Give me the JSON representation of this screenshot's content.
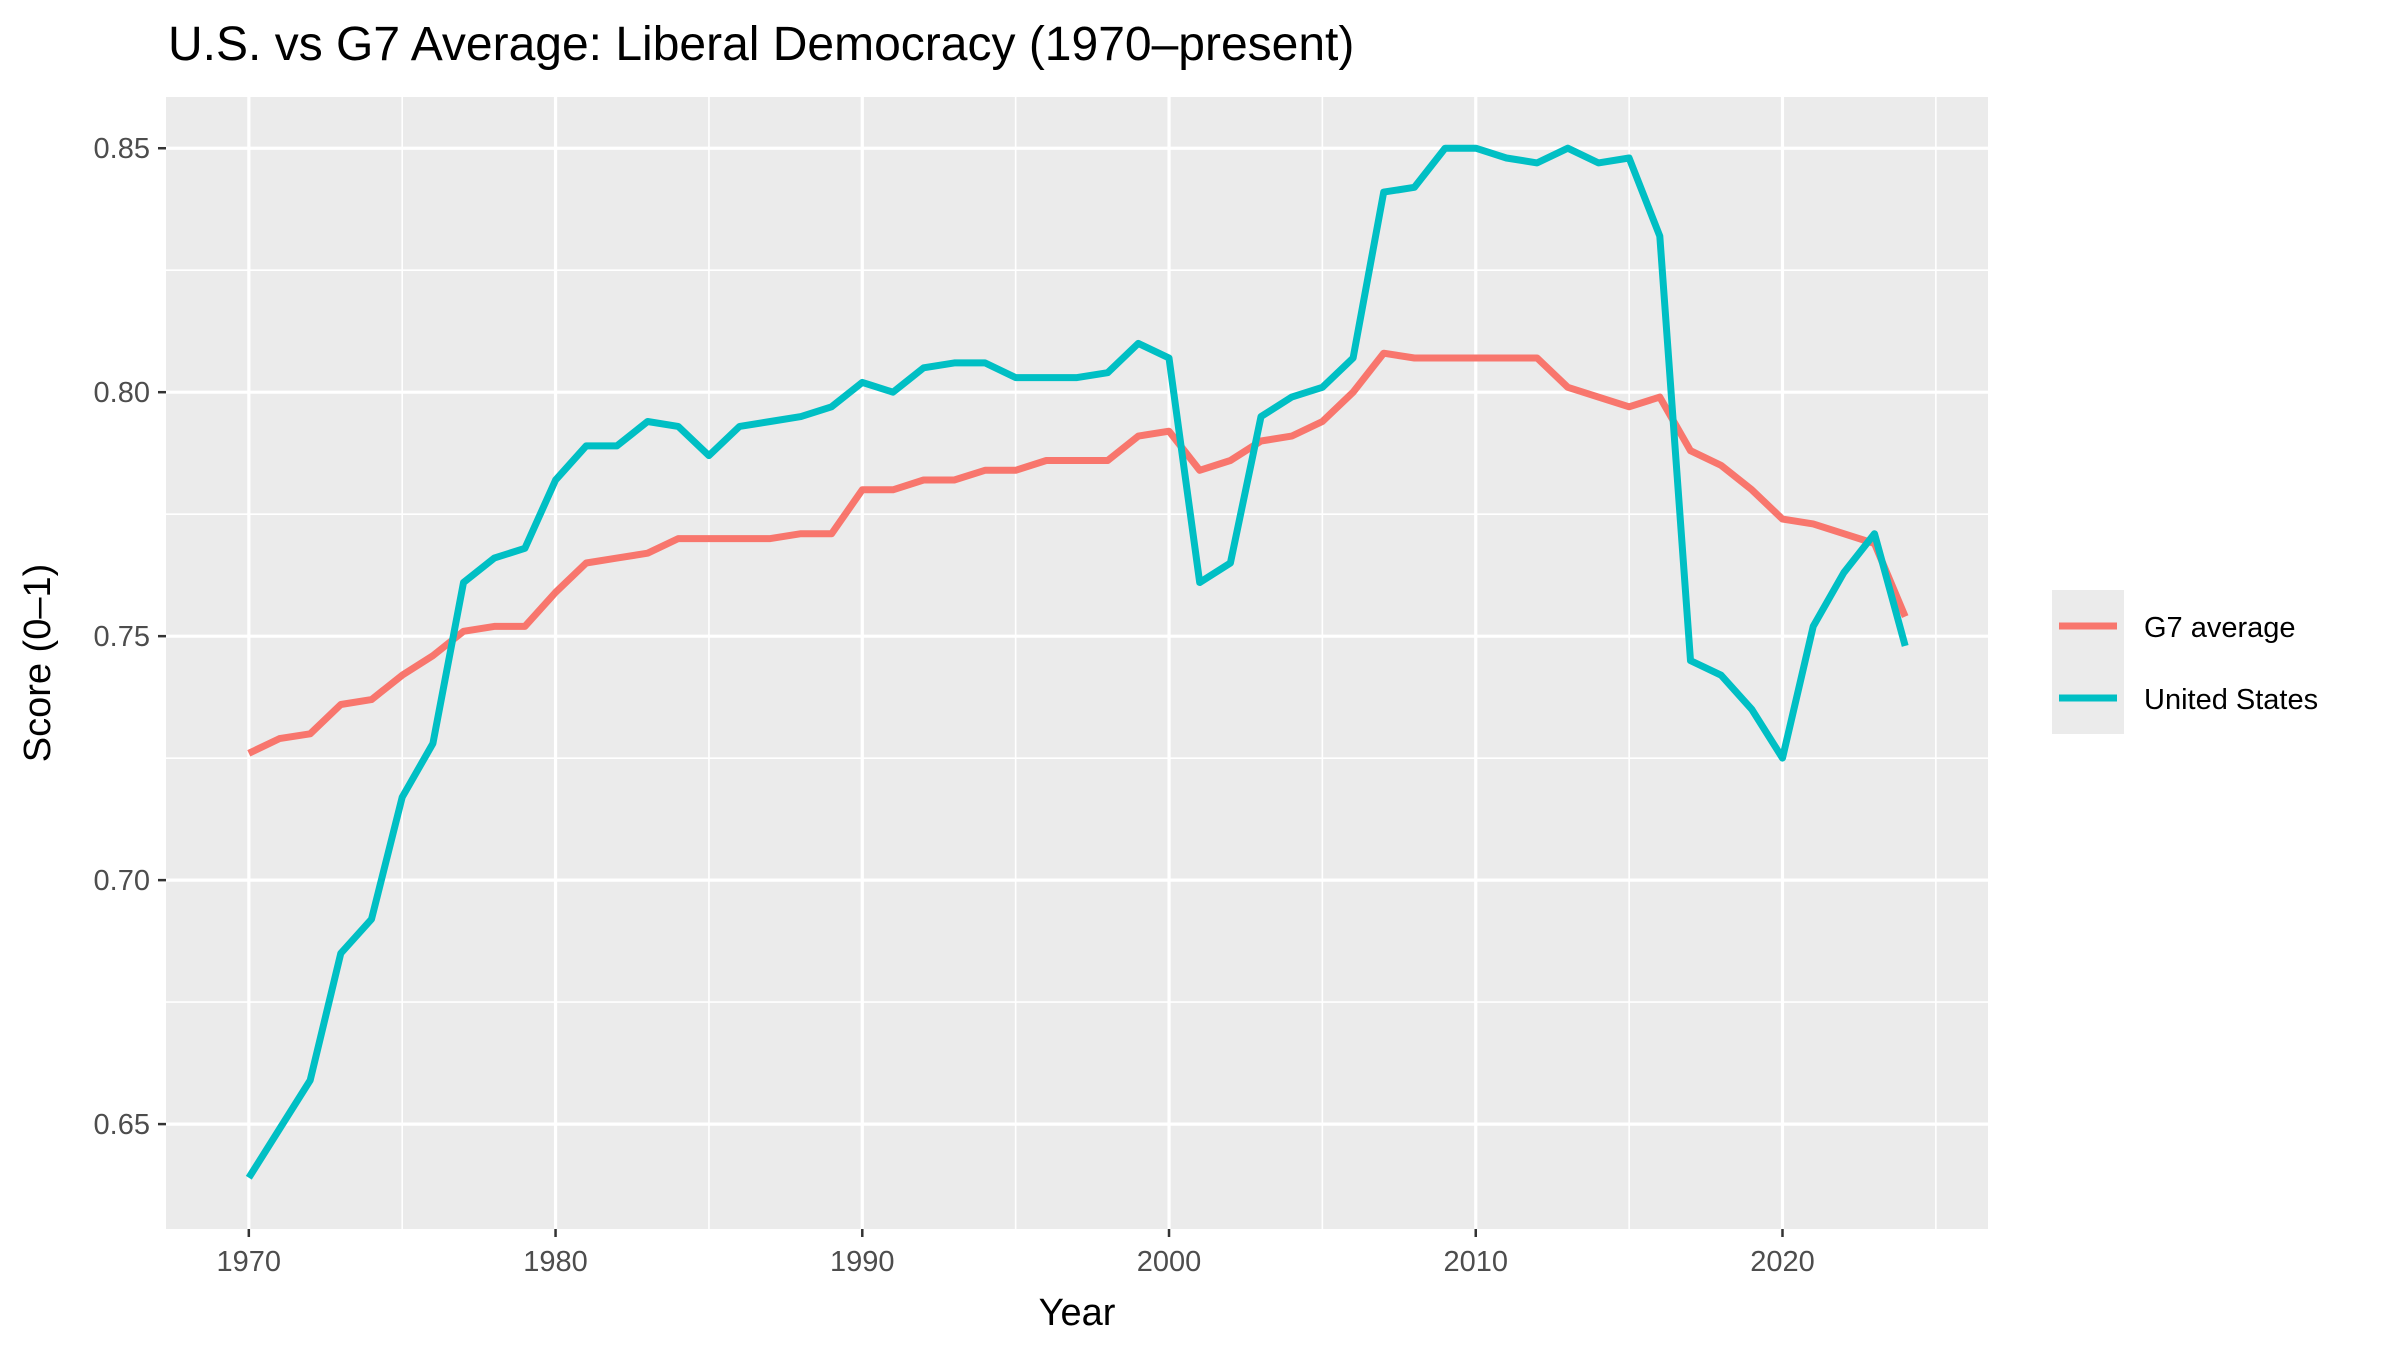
{
  "chart_data": {
    "type": "line",
    "title": "U.S. vs G7 Average: Liberal Democracy (1970–present)",
    "xlabel": "Year",
    "ylabel": "Score (0–1)",
    "xlim": [
      1967.3,
      2026.7
    ],
    "ylim": [
      0.6285,
      0.8605
    ],
    "x_ticks": [
      1970,
      1980,
      1990,
      2000,
      2010,
      2020
    ],
    "y_ticks": [
      0.65,
      0.7,
      0.75,
      0.8,
      0.85
    ],
    "y_tick_labels": [
      "0.65",
      "0.70",
      "0.75",
      "0.80",
      "0.85"
    ],
    "grid": true,
    "legend_position": "right",
    "x": [
      1970,
      1971,
      1972,
      1973,
      1974,
      1975,
      1976,
      1977,
      1978,
      1979,
      1980,
      1981,
      1982,
      1983,
      1984,
      1985,
      1986,
      1987,
      1988,
      1989,
      1990,
      1991,
      1992,
      1993,
      1994,
      1995,
      1996,
      1997,
      1998,
      1999,
      2000,
      2001,
      2002,
      2003,
      2004,
      2005,
      2006,
      2007,
      2008,
      2009,
      2010,
      2011,
      2012,
      2013,
      2014,
      2015,
      2016,
      2017,
      2018,
      2019,
      2020,
      2021,
      2022,
      2023,
      2024
    ],
    "series": [
      {
        "name": "G7 average",
        "color": "#F8766D",
        "values": [
          0.726,
          0.729,
          0.73,
          0.736,
          0.737,
          0.742,
          0.746,
          0.751,
          0.752,
          0.752,
          0.759,
          0.765,
          0.766,
          0.767,
          0.77,
          0.77,
          0.77,
          0.77,
          0.771,
          0.771,
          0.78,
          0.78,
          0.782,
          0.782,
          0.784,
          0.784,
          0.786,
          0.786,
          0.786,
          0.791,
          0.792,
          0.784,
          0.786,
          0.79,
          0.791,
          0.794,
          0.8,
          0.808,
          0.807,
          0.807,
          0.807,
          0.807,
          0.807,
          0.801,
          0.799,
          0.797,
          0.799,
          0.788,
          0.785,
          0.78,
          0.774,
          0.773,
          0.771,
          0.769,
          0.754
        ]
      },
      {
        "name": "United States",
        "color": "#00BFC4",
        "values": [
          0.639,
          0.649,
          0.659,
          0.685,
          0.692,
          0.717,
          0.728,
          0.761,
          0.766,
          0.768,
          0.782,
          0.789,
          0.789,
          0.794,
          0.793,
          0.787,
          0.793,
          0.794,
          0.795,
          0.797,
          0.802,
          0.8,
          0.805,
          0.806,
          0.806,
          0.803,
          0.803,
          0.803,
          0.804,
          0.81,
          0.807,
          0.761,
          0.765,
          0.795,
          0.799,
          0.801,
          0.807,
          0.841,
          0.842,
          0.85,
          0.85,
          0.848,
          0.847,
          0.85,
          0.847,
          0.848,
          0.832,
          0.745,
          0.742,
          0.735,
          0.725,
          0.752,
          0.763,
          0.771,
          0.748
        ]
      }
    ]
  }
}
